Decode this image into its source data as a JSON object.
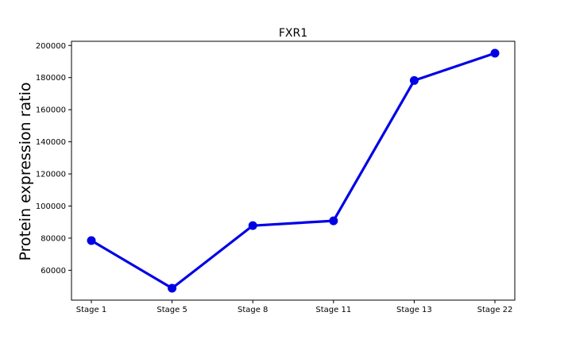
{
  "chart_data": {
    "type": "line",
    "title": "FXR1",
    "xlabel": "",
    "ylabel": "Protein expression ratio",
    "categories": [
      "Stage 1",
      "Stage 5",
      "Stage 8",
      "Stage 11",
      "Stage 13",
      "Stage 22"
    ],
    "series": [
      {
        "values": [
          78500,
          48800,
          87800,
          90800,
          178200,
          195200
        ]
      }
    ],
    "ylim": [
      41400,
      202600
    ],
    "yticks": [
      60000,
      80000,
      100000,
      120000,
      140000,
      160000,
      180000,
      200000
    ],
    "ytick_labels": [
      "60000",
      "80000",
      "100000",
      "120000",
      "140000",
      "160000",
      "180000",
      "200000"
    ],
    "grid": false,
    "legend": "none",
    "colors": {
      "line": "#0000e6",
      "marker": "#0000e6",
      "axes": "#000000",
      "background": "#ffffff"
    }
  }
}
